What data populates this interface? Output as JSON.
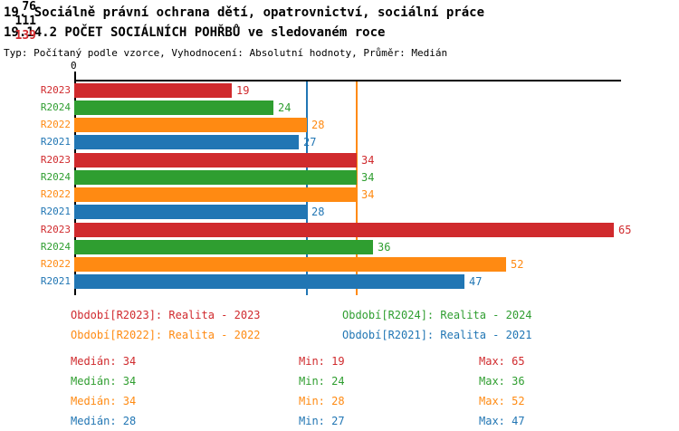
{
  "header": {
    "title": "19. Sociálně právní ochrana dětí, opatrovnictví, sociální práce",
    "subtitle": "19.14.2 POČET SOCIÁLNÍCH POHŘBŮ ve sledovaném roce",
    "meta": "Typ: Počítaný podle vzorce, Vyhodnocení: Absolutní hodnoty, Průměr: Medián"
  },
  "colors": {
    "R2023": "#d02a2d",
    "R2024": "#2f9e30",
    "R2022": "#ff8a12",
    "R2021": "#2176b4",
    "axis": "#000000"
  },
  "chart_data": {
    "type": "bar",
    "orientation": "horizontal-grouped",
    "title": "19.14.2 POČET SOCIÁLNÍCH POHŘBŮ ve sledovaném roce",
    "x_axis": {
      "zero_label": "0",
      "xlim": [
        0,
        66
      ],
      "grid": false
    },
    "series_order": [
      "R2023",
      "R2024",
      "R2022",
      "R2021"
    ],
    "groups": [
      {
        "label": "76",
        "label_color": "#000000",
        "values": {
          "R2023": 19,
          "R2024": 24,
          "R2022": 28,
          "R2021": 27
        }
      },
      {
        "label": "111",
        "label_color": "#000000",
        "values": {
          "R2023": 34,
          "R2024": 34,
          "R2022": 34,
          "R2021": 28
        }
      },
      {
        "label": "139",
        "label_color": "#d02a2d",
        "values": {
          "R2023": 65,
          "R2024": 36,
          "R2022": 52,
          "R2021": 47
        }
      }
    ],
    "median_lines": [
      {
        "series": "R2022",
        "value": 34
      },
      {
        "series": "R2021",
        "value": 28
      }
    ]
  },
  "legend": [
    {
      "series": "R2023",
      "text": "Období[R2023]: Realita - 2023"
    },
    {
      "series": "R2024",
      "text": "Období[R2024]: Realita - 2024"
    },
    {
      "series": "R2022",
      "text": "Období[R2022]: Realita - 2022"
    },
    {
      "series": "R2021",
      "text": "Období[R2021]: Realita - 2021"
    }
  ],
  "stats_labels": {
    "median": "Medián",
    "min": "Min",
    "max": "Max"
  },
  "stats": [
    {
      "series": "R2023",
      "median": 34,
      "min": 19,
      "max": 65
    },
    {
      "series": "R2024",
      "median": 34,
      "min": 24,
      "max": 36
    },
    {
      "series": "R2022",
      "median": 34,
      "min": 28,
      "max": 52
    },
    {
      "series": "R2021",
      "median": 28,
      "min": 27,
      "max": 47
    }
  ]
}
